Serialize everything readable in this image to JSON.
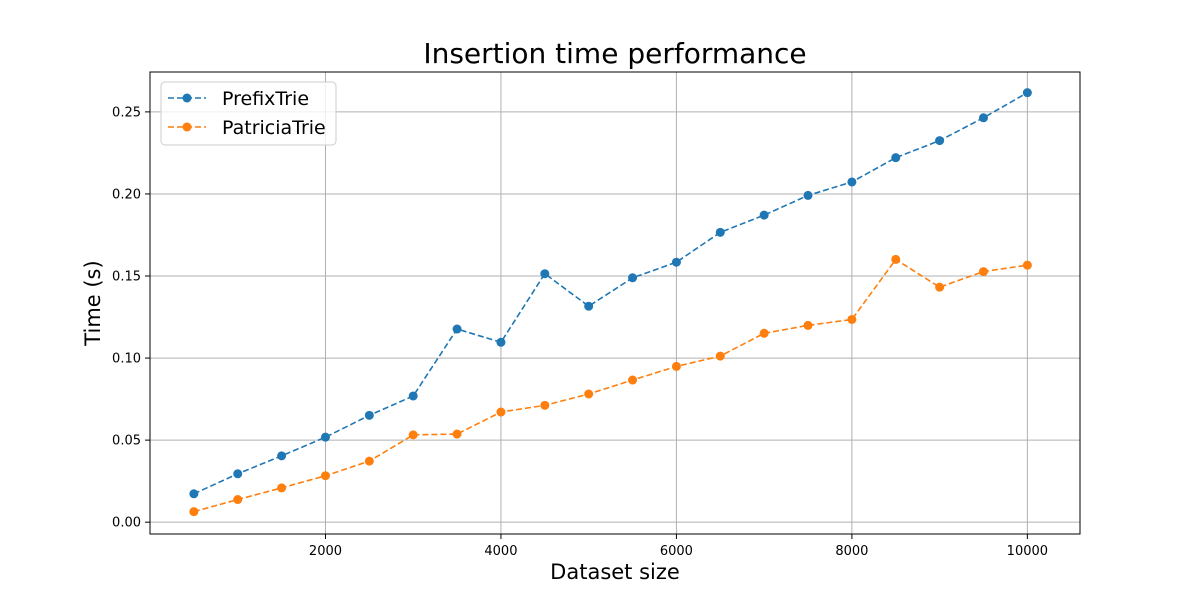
{
  "chart_data": {
    "type": "line",
    "title": "Insertion time performance",
    "xlabel": "Dataset size",
    "ylabel": "Time (s)",
    "xlim": [
      0,
      10600
    ],
    "ylim": [
      -0.0072,
      0.2743
    ],
    "xticks": [
      2000,
      4000,
      6000,
      8000,
      10000
    ],
    "xtick_labels": [
      "2000",
      "4000",
      "6000",
      "8000",
      "10000"
    ],
    "yticks": [
      0.0,
      0.05,
      0.1,
      0.15,
      0.2,
      0.25
    ],
    "ytick_labels": [
      "0.00",
      "0.05",
      "0.10",
      "0.15",
      "0.20",
      "0.25"
    ],
    "grid": true,
    "legend_position": "upper-left",
    "line_style": "dashed",
    "marker": "circle",
    "x": [
      500,
      1000,
      1500,
      2000,
      2500,
      3000,
      3500,
      4000,
      4500,
      5000,
      5500,
      6000,
      6500,
      7000,
      7500,
      8000,
      8500,
      9000,
      9500,
      10000
    ],
    "series": [
      {
        "name": "PrefixTrie",
        "color": "#1f77b4",
        "values": [
          0.0173,
          0.0295,
          0.0404,
          0.0518,
          0.0651,
          0.0769,
          0.1177,
          0.1096,
          0.1514,
          0.1316,
          0.1489,
          0.1584,
          0.1766,
          0.1871,
          0.1991,
          0.2073,
          0.2221,
          0.2325,
          0.2464,
          0.2617
        ]
      },
      {
        "name": "PatriciaTrie",
        "color": "#ff7f0e",
        "values": [
          0.0064,
          0.0138,
          0.0209,
          0.0283,
          0.0372,
          0.0532,
          0.0537,
          0.0671,
          0.0712,
          0.0781,
          0.0866,
          0.0949,
          0.1012,
          0.1151,
          0.1199,
          0.1235,
          0.1601,
          0.1432,
          0.1527,
          0.1566
        ]
      }
    ]
  }
}
